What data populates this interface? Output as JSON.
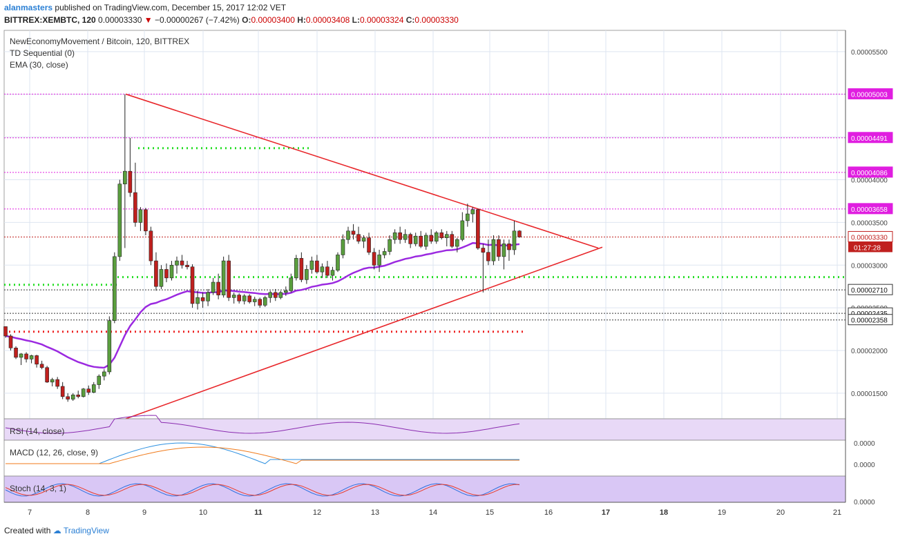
{
  "header": {
    "author": "alanmasters",
    "published": "published on TradingView.com, December 15, 2017 12:02 VET",
    "symbol": "BITTREX:XEMBTC, 120",
    "last": "0.00003330",
    "change": "−0.00000267 (−7.42%)",
    "o_label": "O:",
    "o": "0.00003400",
    "h_label": "H:",
    "h": "0.00003408",
    "l_label": "L:",
    "l": "0.00003324",
    "c_label": "C:",
    "c": "0.00003330"
  },
  "legend": {
    "title": "NewEconomyMovement / Bitcoin, 120, BITTREX",
    "ind1": "TD Sequential (0)",
    "ind2": "EMA (30, close)",
    "rsi": "RSI (14, close)",
    "macd": "MACD (12, 26, close, 9)",
    "stoch": "Stoch (14, 3, 1)"
  },
  "footer": {
    "created": "Created with",
    "brand": "TradingView"
  },
  "colors": {
    "up": "#5a9e3e",
    "down": "#c0201e",
    "ema": "#9b29e0",
    "trend": "#e8262a",
    "magenta": "#e01ee0",
    "green_dot": "#22dd22",
    "red_dot": "#ee2222"
  },
  "chart_data": {
    "type": "candlestick",
    "y_axis_ticks": [
      "0.00005500",
      "0.00005000",
      "0.00004500",
      "0.00004000",
      "0.00003500",
      "0.00003000",
      "0.00002500",
      "0.00002000",
      "0.00001500"
    ],
    "x_axis_ticks": [
      "7",
      "8",
      "9",
      "10",
      "11",
      "12",
      "13",
      "14",
      "15",
      "16",
      "17",
      "18",
      "19",
      "20",
      "21"
    ],
    "ylim": [
      1.2e-05,
      5.75e-05
    ],
    "price_labels": [
      {
        "text": "0.00005003",
        "value": 5.003e-05,
        "style": "magenta"
      },
      {
        "text": "0.00004491",
        "value": 4.491e-05,
        "style": "magenta"
      },
      {
        "text": "0.00004086",
        "value": 4.086e-05,
        "style": "magenta"
      },
      {
        "text": "0.00003658",
        "value": 3.658e-05,
        "style": "magenta"
      },
      {
        "text": "0.00003330",
        "value": 3.33e-05,
        "style": "red"
      },
      {
        "text": "0.00002710",
        "value": 2.71e-05,
        "style": "black"
      },
      {
        "text": "0.00002435",
        "value": 2.435e-05,
        "style": "black"
      },
      {
        "text": "0.00002358",
        "value": 2.358e-05,
        "style": "black"
      }
    ],
    "countdown": "01:27:28",
    "ohlc": [
      [
        2.28e-05,
        2.28e-05,
        2.15e-05,
        2.17e-05
      ],
      [
        2.17e-05,
        2.19e-05,
        2e-05,
        2.03e-05
      ],
      [
        2.03e-05,
        2.05e-05,
        1.9e-05,
        1.92e-05
      ],
      [
        1.92e-05,
        1.97e-05,
        1.83e-05,
        1.96e-05
      ],
      [
        1.96e-05,
        1.98e-05,
        1.86e-05,
        1.9e-05
      ],
      [
        1.9e-05,
        1.95e-05,
        1.85e-05,
        1.94e-05
      ],
      [
        1.94e-05,
        1.95e-05,
        1.8e-05,
        1.84e-05
      ],
      [
        1.84e-05,
        1.88e-05,
        1.78e-05,
        1.8e-05
      ],
      [
        1.8e-05,
        1.82e-05,
        1.62e-05,
        1.63e-05
      ],
      [
        1.63e-05,
        1.68e-05,
        1.58e-05,
        1.66e-05
      ],
      [
        1.66e-05,
        1.69e-05,
        1.55e-05,
        1.58e-05
      ],
      [
        1.58e-05,
        1.63e-05,
        1.43e-05,
        1.46e-05
      ],
      [
        1.46e-05,
        1.5e-05,
        1.4e-05,
        1.43e-05
      ],
      [
        1.43e-05,
        1.5e-05,
        1.41e-05,
        1.48e-05
      ],
      [
        1.48e-05,
        1.53e-05,
        1.44e-05,
        1.46e-05
      ],
      [
        1.46e-05,
        1.56e-05,
        1.45e-05,
        1.55e-05
      ],
      [
        1.55e-05,
        1.59e-05,
        1.48e-05,
        1.51e-05
      ],
      [
        1.51e-05,
        1.63e-05,
        1.5e-05,
        1.6e-05
      ],
      [
        1.6e-05,
        1.72e-05,
        1.55e-05,
        1.7e-05
      ],
      [
        1.7e-05,
        1.78e-05,
        1.65e-05,
        1.75e-05
      ],
      [
        1.75e-05,
        2.4e-05,
        1.72e-05,
        2.35e-05
      ],
      [
        2.35e-05,
        3.15e-05,
        2.32e-05,
        3.1e-05
      ],
      [
        3.1e-05,
        4e-05,
        3.05e-05,
        3.95e-05
      ],
      [
        3.95e-05,
        5e-05,
        3.2e-05,
        4.1e-05
      ],
      [
        4.1e-05,
        4.49e-05,
        3.8e-05,
        3.85e-05
      ],
      [
        3.85e-05,
        4.2e-05,
        3.45e-05,
        3.5e-05
      ],
      [
        3.5e-05,
        3.68e-05,
        3.4e-05,
        3.65e-05
      ],
      [
        3.65e-05,
        3.67e-05,
        3.35e-05,
        3.4e-05
      ],
      [
        3.4e-05,
        3.45e-05,
        3e-05,
        3.05e-05
      ],
      [
        3.05e-05,
        3.15e-05,
        2.7e-05,
        2.75e-05
      ],
      [
        2.75e-05,
        3e-05,
        2.72e-05,
        2.95e-05
      ],
      [
        2.95e-05,
        3.02e-05,
        2.8e-05,
        2.85e-05
      ],
      [
        2.85e-05,
        3.05e-05,
        2.82e-05,
        3e-05
      ],
      [
        3e-05,
        3.1e-05,
        2.9e-05,
        3.05e-05
      ],
      [
        3.05e-05,
        3.12e-05,
        2.96e-05,
        3e-05
      ],
      [
        3e-05,
        3.05e-05,
        2.95e-05,
        2.98e-05
      ],
      [
        2.98e-05,
        3.01e-05,
        2.5e-05,
        2.55e-05
      ],
      [
        2.55e-05,
        2.7e-05,
        2.48e-05,
        2.62e-05
      ],
      [
        2.62e-05,
        2.68e-05,
        2.5e-05,
        2.58e-05
      ],
      [
        2.58e-05,
        2.72e-05,
        2.52e-05,
        2.68e-05
      ],
      [
        2.68e-05,
        2.85e-05,
        2.65e-05,
        2.8e-05
      ],
      [
        2.8e-05,
        2.9e-05,
        2.6e-05,
        2.65e-05
      ],
      [
        2.65e-05,
        3.1e-05,
        2.62e-05,
        3.05e-05
      ],
      [
        3.05e-05,
        3.12e-05,
        2.58e-05,
        2.62e-05
      ],
      [
        2.62e-05,
        2.68e-05,
        2.55e-05,
        2.65e-05
      ],
      [
        2.65e-05,
        2.67e-05,
        2.55e-05,
        2.58e-05
      ],
      [
        2.58e-05,
        2.66e-05,
        2.54e-05,
        2.64e-05
      ],
      [
        2.64e-05,
        2.66e-05,
        2.55e-05,
        2.57e-05
      ],
      [
        2.57e-05,
        2.63e-05,
        2.52e-05,
        2.6e-05
      ],
      [
        2.6e-05,
        2.62e-05,
        2.5e-05,
        2.53e-05
      ],
      [
        2.53e-05,
        2.64e-05,
        2.51e-05,
        2.62e-05
      ],
      [
        2.62e-05,
        2.7e-05,
        2.56e-05,
        2.68e-05
      ],
      [
        2.68e-05,
        2.72e-05,
        2.58e-05,
        2.62e-05
      ],
      [
        2.62e-05,
        2.7e-05,
        2.6e-05,
        2.68e-05
      ],
      [
        2.68e-05,
        2.75e-05,
        2.64e-05,
        2.7e-05
      ],
      [
        2.7e-05,
        2.9e-05,
        2.68e-05,
        2.85e-05
      ],
      [
        2.85e-05,
        3.12e-05,
        2.82e-05,
        3.08e-05
      ],
      [
        3.08e-05,
        3.15e-05,
        2.8e-05,
        2.83e-05
      ],
      [
        2.83e-05,
        3e-05,
        2.78e-05,
        2.95e-05
      ],
      [
        2.95e-05,
        3.1e-05,
        2.9e-05,
        3.05e-05
      ],
      [
        3.05e-05,
        3.12e-05,
        2.9e-05,
        2.92e-05
      ],
      [
        2.92e-05,
        3.02e-05,
        2.85e-05,
        2.98e-05
      ],
      [
        2.98e-05,
        3.05e-05,
        2.85e-05,
        2.88e-05
      ],
      [
        2.88e-05,
        2.98e-05,
        2.82e-05,
        2.94e-05
      ],
      [
        2.94e-05,
        3.15e-05,
        2.92e-05,
        3.12e-05
      ],
      [
        3.12e-05,
        3.36e-05,
        3.08e-05,
        3.3e-05
      ],
      [
        3.3e-05,
        3.45e-05,
        3.25e-05,
        3.4e-05
      ],
      [
        3.4e-05,
        3.48e-05,
        3.3e-05,
        3.36e-05
      ],
      [
        3.36e-05,
        3.45e-05,
        3.25e-05,
        3.28e-05
      ],
      [
        3.28e-05,
        3.35e-05,
        3.2e-05,
        3.32e-05
      ],
      [
        3.32e-05,
        3.38e-05,
        3.12e-05,
        3.15e-05
      ],
      [
        3.15e-05,
        3.2e-05,
        2.95e-05,
        3e-05
      ],
      [
        3e-05,
        3.18e-05,
        2.92e-05,
        3.12e-05
      ],
      [
        3.12e-05,
        3.2e-05,
        3.08e-05,
        3.16e-05
      ],
      [
        3.16e-05,
        3.35e-05,
        3.12e-05,
        3.3e-05
      ],
      [
        3.3e-05,
        3.42e-05,
        3.25e-05,
        3.38e-05
      ],
      [
        3.38e-05,
        3.45e-05,
        3.25e-05,
        3.3e-05
      ],
      [
        3.3e-05,
        3.42e-05,
        3.26e-05,
        3.36e-05
      ],
      [
        3.36e-05,
        3.38e-05,
        3.2e-05,
        3.25e-05
      ],
      [
        3.25e-05,
        3.38e-05,
        3.22e-05,
        3.34e-05
      ],
      [
        3.34e-05,
        3.4e-05,
        3.2e-05,
        3.22e-05
      ],
      [
        3.22e-05,
        3.38e-05,
        3.18e-05,
        3.35e-05
      ],
      [
        3.35e-05,
        3.42e-05,
        3.25e-05,
        3.28e-05
      ],
      [
        3.28e-05,
        3.4e-05,
        3.25e-05,
        3.38e-05
      ],
      [
        3.38e-05,
        3.42e-05,
        3.3e-05,
        3.32e-05
      ],
      [
        3.32e-05,
        3.4e-05,
        3.22e-05,
        3.36e-05
      ],
      [
        3.36e-05,
        3.4e-05,
        3.2e-05,
        3.22e-05
      ],
      [
        3.22e-05,
        3.32e-05,
        3.15e-05,
        3.3e-05
      ],
      [
        3.3e-05,
        3.62e-05,
        3.28e-05,
        3.52e-05
      ],
      [
        3.52e-05,
        3.72e-05,
        3.45e-05,
        3.6e-05
      ],
      [
        3.6e-05,
        3.68e-05,
        3.5e-05,
        3.65e-05
      ],
      [
        3.65e-05,
        3.66e-05,
        3.18e-05,
        3.2e-05
      ],
      [
        3.2e-05,
        3.25e-05,
        2.68e-05,
        3.15e-05
      ],
      [
        3.15e-05,
        3.3e-05,
        3e-05,
        3.05e-05
      ],
      [
        3.05e-05,
        3.35e-05,
        3e-05,
        3.3e-05
      ],
      [
        3.3e-05,
        3.35e-05,
        3.05e-05,
        3.1e-05
      ],
      [
        3.1e-05,
        3.3e-05,
        2.95e-05,
        3.25e-05
      ],
      [
        3.25e-05,
        3.3e-05,
        3.05e-05,
        3.18e-05
      ],
      [
        3.18e-05,
        3.52e-05,
        3.12e-05,
        3.4e-05
      ],
      [
        3.4e-05,
        3.41e-05,
        3.32e-05,
        3.33e-05
      ]
    ]
  }
}
